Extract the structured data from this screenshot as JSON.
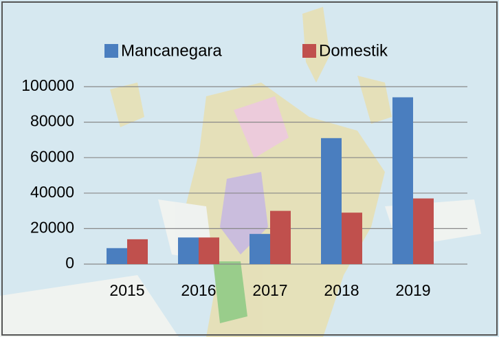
{
  "chart_data": {
    "type": "bar",
    "categories": [
      "2015",
      "2016",
      "2017",
      "2018",
      "2019"
    ],
    "series": [
      {
        "name": "Mancanegara",
        "color": "#4a7ebf",
        "values": [
          9000,
          15000,
          17000,
          71000,
          94000
        ]
      },
      {
        "name": "Domestik",
        "color": "#c0504d",
        "values": [
          14000,
          15000,
          30000,
          29000,
          37000
        ]
      }
    ],
    "ylim": [
      0,
      100000
    ],
    "yticks": [
      0,
      20000,
      40000,
      60000,
      80000,
      100000
    ],
    "grid": true
  }
}
